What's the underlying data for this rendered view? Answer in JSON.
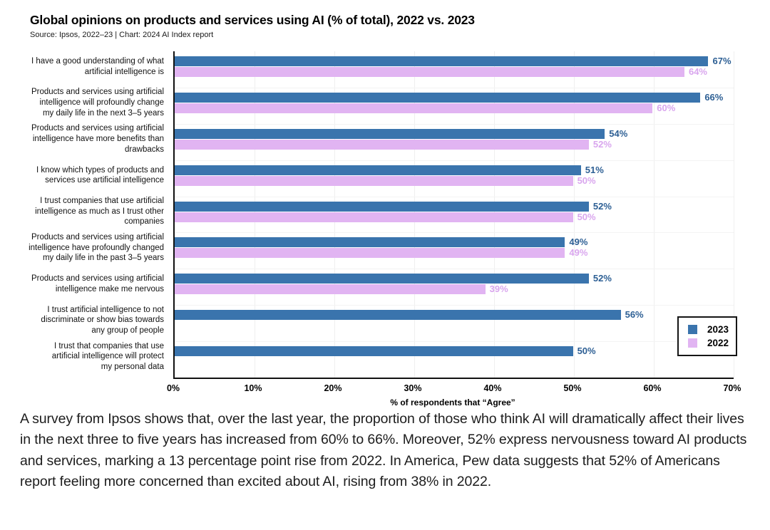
{
  "header": {
    "title": "Global opinions on products and services using AI (% of total), 2022 vs. 2023",
    "source": "Source: Ipsos, 2022–23 | Chart: 2024 AI Index report"
  },
  "chart_data": {
    "type": "bar",
    "orientation": "horizontal",
    "title": "Global opinions on products and services using AI (% of total), 2022 vs. 2023",
    "xlabel": "% of respondents that “Agree”",
    "xlim": [
      0,
      70
    ],
    "x_ticks": [
      "0%",
      "10%",
      "20%",
      "30%",
      "40%",
      "50%",
      "60%",
      "70%"
    ],
    "grid": true,
    "legend_position": "bottom-right",
    "value_suffix": "%",
    "categories": [
      [
        "I have a good understanding of what",
        "artificial intelligence is"
      ],
      [
        "Products and services using artificial",
        "intelligence will profoundly change",
        "my daily life in the next 3–5 years"
      ],
      [
        "Products and services using artificial",
        "intelligence have more benefits than",
        "drawbacks"
      ],
      [
        "I know which types of products and",
        "services use artificial intelligence"
      ],
      [
        "I trust companies that use artificial",
        "intelligence as much as I trust other",
        "companies"
      ],
      [
        "Products and services using artificial",
        "intelligence have profoundly changed",
        "my daily life in the past 3–5 years"
      ],
      [
        "Products and services using artificial",
        "intelligence make me nervous"
      ],
      [
        "I trust artificial intelligence to not",
        "discriminate or show bias towards",
        "any group of people"
      ],
      [
        "I trust that companies that use",
        "artificial intelligence will protect",
        "my personal data"
      ]
    ],
    "series": [
      {
        "name": "2023",
        "color": "#3a74ad",
        "label_color": "#2d5f94",
        "values": [
          67,
          66,
          54,
          51,
          52,
          49,
          52,
          56,
          50
        ]
      },
      {
        "name": "2022",
        "color": "#e1b4f2",
        "label_color": "#d9a6ee",
        "values": [
          64,
          60,
          52,
          50,
          50,
          49,
          39,
          null,
          null
        ]
      }
    ]
  },
  "caption": "A survey from Ipsos shows that, over the last year, the proportion of those who think AI will dramatically affect their lives in the next three to five years has increased from 60% to 66%. Moreover, 52% express nervousness toward AI products and services, marking a 13 percentage point rise from 2022. In America, Pew data suggests that 52% of Americans report feeling more concerned than excited about AI, rising from 38% in 2022."
}
